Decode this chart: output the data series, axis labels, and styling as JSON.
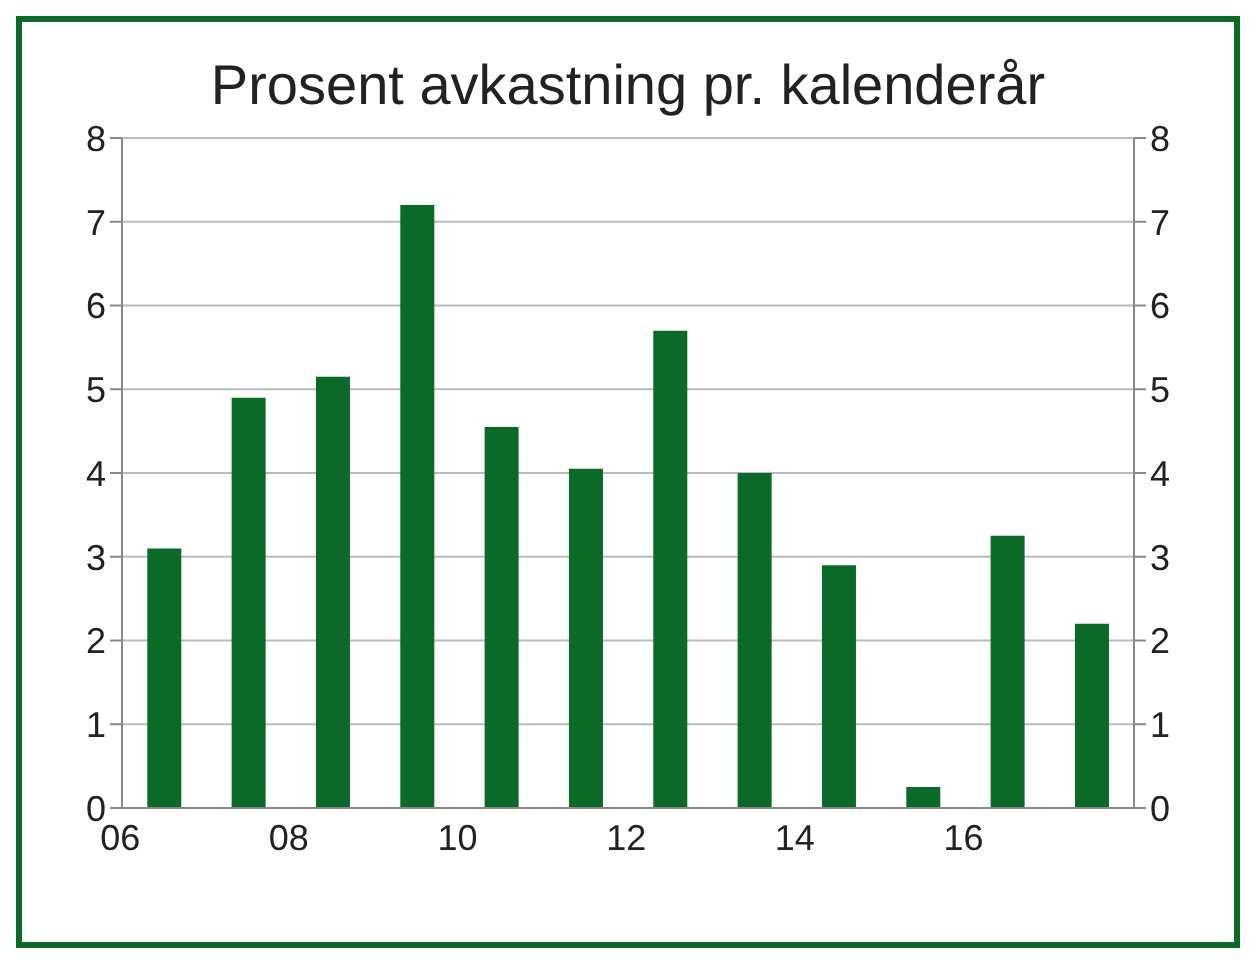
{
  "chart_data": {
    "type": "bar",
    "title": "Prosent avkastning pr. kalenderår",
    "categories": [
      "06",
      null,
      "08",
      null,
      "10",
      null,
      "12",
      null,
      "14",
      null,
      "16",
      null
    ],
    "values": [
      3.1,
      4.9,
      5.15,
      7.2,
      4.55,
      4.05,
      5.7,
      4.0,
      2.9,
      0.25,
      3.25,
      2.2
    ],
    "color": "#0b6a27",
    "ylim": [
      0,
      8
    ],
    "yticks": [
      0,
      1,
      2,
      3,
      4,
      5,
      6,
      7,
      8
    ],
    "y2lim": [
      0,
      8
    ],
    "y2ticks": [
      0,
      1,
      2,
      3,
      4,
      5,
      6,
      7,
      8
    ],
    "grid": "y",
    "legend": false
  }
}
